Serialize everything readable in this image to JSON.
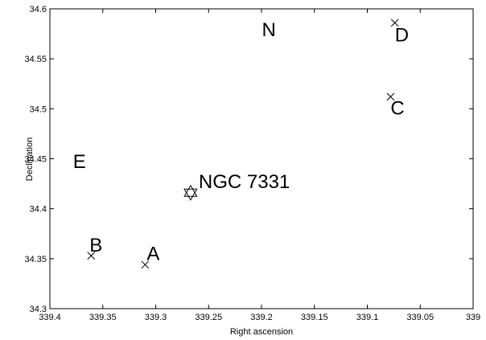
{
  "chart_data": {
    "type": "scatter",
    "title": "",
    "xlabel": "Right ascension",
    "ylabel": "Declination",
    "xlim": [
      339.4,
      339.0
    ],
    "ylim": [
      34.3,
      34.6
    ],
    "x_reversed": true,
    "grid": false,
    "xticks": [
      339.4,
      339.35,
      339.3,
      339.25,
      339.2,
      339.15,
      339.1,
      339.05,
      339
    ],
    "xtick_labels": [
      "339.4",
      "339.35",
      "339.3",
      "339.25",
      "339.2",
      "339.15",
      "339.1",
      "339.05",
      "339"
    ],
    "yticks": [
      34.3,
      34.35,
      34.4,
      34.45,
      34.5,
      34.55,
      34.6
    ],
    "ytick_labels": [
      "34.3",
      "34.35",
      "34.4",
      "34.45",
      "34.5",
      "34.55",
      "34.6"
    ],
    "points": [
      {
        "label": "A",
        "marker": "x",
        "x": 339.31,
        "y": 34.344
      },
      {
        "label": "B",
        "marker": "x",
        "x": 339.361,
        "y": 34.353
      },
      {
        "label": "C",
        "marker": "x",
        "x": 339.078,
        "y": 34.512
      },
      {
        "label": "D",
        "marker": "x",
        "x": 339.074,
        "y": 34.586
      },
      {
        "label": "NGC 7331",
        "marker": "star",
        "x": 339.267,
        "y": 34.416
      }
    ],
    "annotations": [
      {
        "text": "N",
        "x": 339.193,
        "y": 34.58
      },
      {
        "text": "E",
        "x": 339.372,
        "y": 34.448
      }
    ]
  }
}
